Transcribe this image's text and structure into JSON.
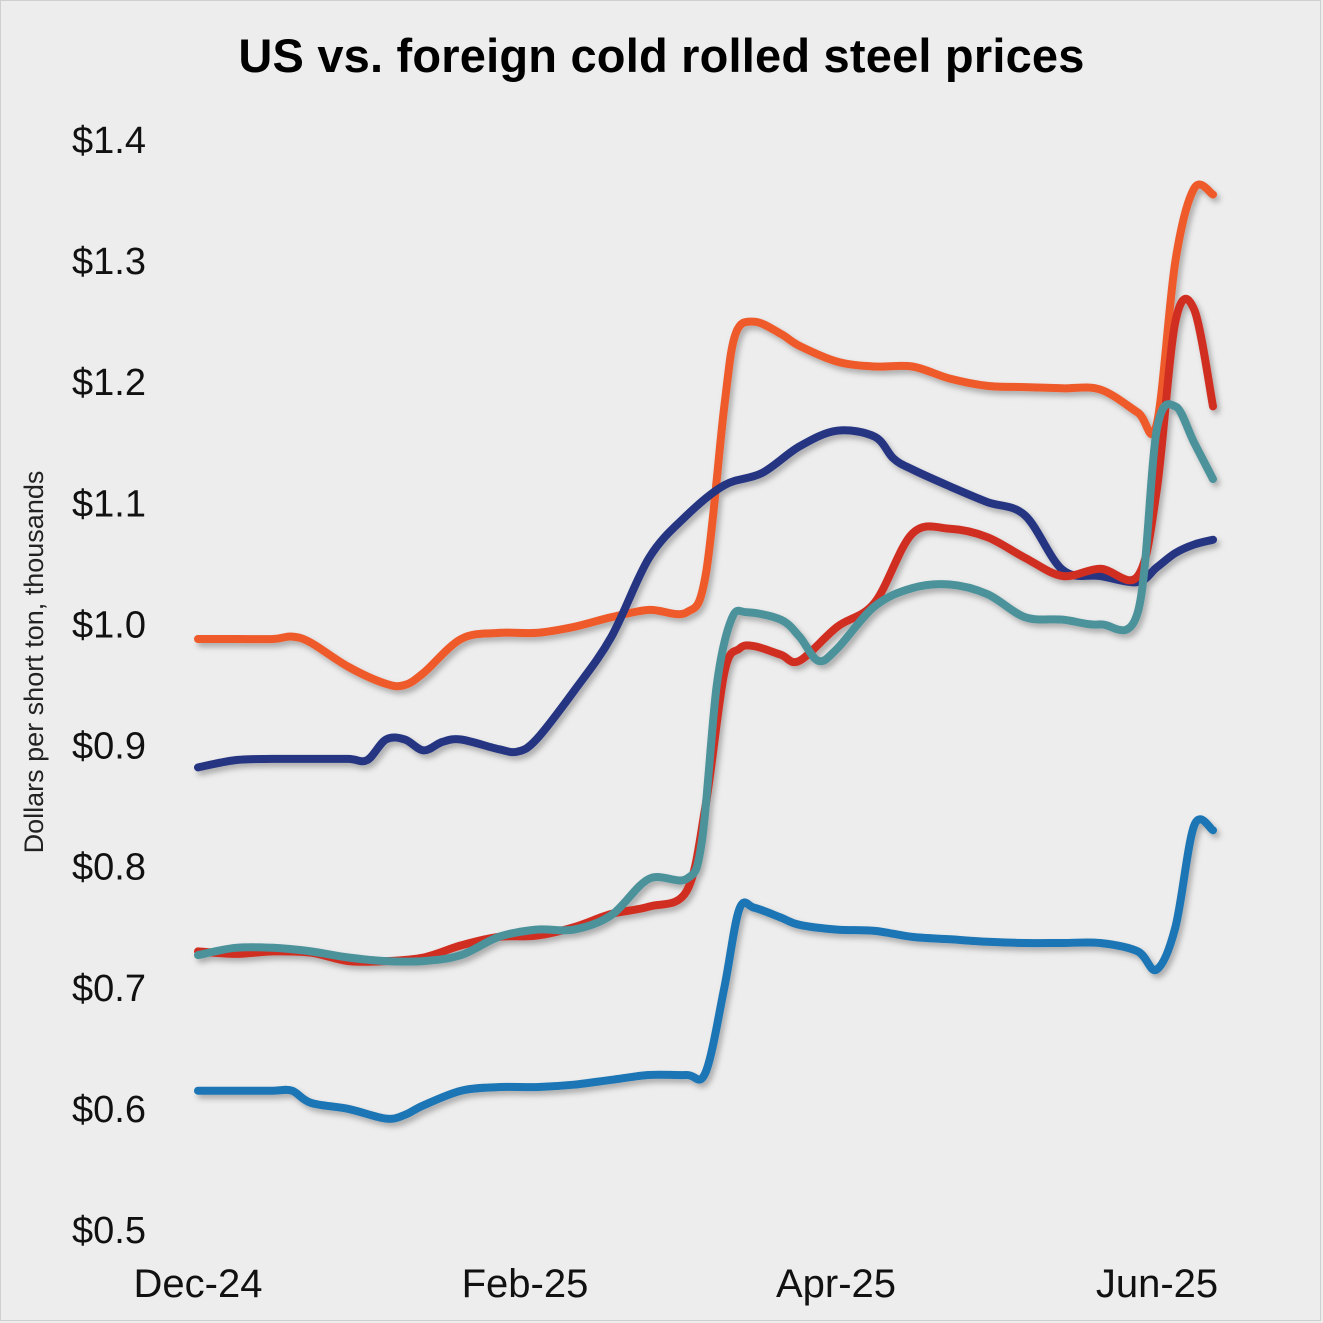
{
  "chart_data": {
    "type": "line",
    "title": "US vs. foreign cold rolled steel prices",
    "xlabel": "",
    "ylabel": "Dollars per short ton, thousands",
    "ylim": [
      0.5,
      1.4
    ],
    "yticks": [
      1.4,
      1.3,
      1.2,
      1.1,
      1.0,
      0.9,
      0.8,
      0.7,
      0.6,
      0.5
    ],
    "ytick_labels": [
      "$1.4",
      "$1.3",
      "$1.2",
      "$1.1",
      "$1.0",
      "$0.9",
      "$0.8",
      "$0.7",
      "$0.6",
      "$0.5"
    ],
    "x_range": [
      0,
      27
    ],
    "xticks": [
      0,
      9,
      18,
      27
    ],
    "xtick_labels": [
      "Dec-24",
      "Feb-25",
      "Apr-25",
      "Jun-25"
    ],
    "grid": false,
    "series": [
      {
        "name": "Orange",
        "color": "#ef5a2a",
        "x": [
          0,
          1,
          2,
          2.5,
          3,
          4,
          5,
          5.5,
          6,
          7,
          8,
          9,
          10,
          11,
          12,
          13,
          13.5,
          14,
          14.3,
          14.8,
          15.5,
          16,
          17,
          18,
          19,
          20,
          21,
          22,
          23,
          24,
          25,
          25.5,
          26,
          26.5,
          27
        ],
        "values": [
          0.988,
          0.988,
          0.988,
          0.99,
          0.985,
          0.965,
          0.951,
          0.95,
          0.96,
          0.988,
          0.993,
          0.993,
          0.998,
          1.006,
          1.012,
          1.01,
          1.04,
          1.18,
          1.24,
          1.25,
          1.24,
          1.23,
          1.217,
          1.213,
          1.213,
          1.203,
          1.197,
          1.196,
          1.195,
          1.194,
          1.175,
          1.165,
          1.3,
          1.36,
          1.355
        ]
      },
      {
        "name": "Navy",
        "color": "#253582",
        "x": [
          0,
          1,
          2,
          3,
          4,
          4.5,
          5,
          5.5,
          6,
          6.5,
          7,
          8,
          8.5,
          9,
          10,
          11,
          12,
          13,
          14,
          15,
          16,
          17,
          18,
          18.5,
          19,
          20,
          21,
          22,
          23,
          24,
          25,
          25.5,
          26,
          26.5,
          27
        ],
        "values": [
          0.882,
          0.888,
          0.889,
          0.889,
          0.889,
          0.888,
          0.905,
          0.905,
          0.896,
          0.903,
          0.905,
          0.897,
          0.895,
          0.905,
          0.945,
          0.99,
          1.055,
          1.09,
          1.115,
          1.125,
          1.147,
          1.16,
          1.155,
          1.137,
          1.128,
          1.114,
          1.101,
          1.09,
          1.045,
          1.04,
          1.035,
          1.047,
          1.059,
          1.066,
          1.07
        ]
      },
      {
        "name": "Red",
        "color": "#d12e22",
        "x": [
          0,
          1,
          2,
          3,
          4,
          5,
          6,
          7,
          8,
          9,
          10,
          11,
          12,
          13,
          13.5,
          14,
          14.4,
          14.8,
          15.5,
          16,
          17,
          18,
          19,
          20,
          21,
          22,
          23,
          24,
          25,
          25.5,
          26,
          26.5,
          27
        ],
        "values": [
          0.73,
          0.728,
          0.73,
          0.729,
          0.722,
          0.722,
          0.725,
          0.735,
          0.742,
          0.743,
          0.75,
          0.761,
          0.767,
          0.78,
          0.85,
          0.96,
          0.98,
          0.982,
          0.975,
          0.97,
          0.998,
          1.018,
          1.075,
          1.079,
          1.072,
          1.055,
          1.04,
          1.046,
          1.04,
          1.11,
          1.25,
          1.26,
          1.18
        ]
      },
      {
        "name": "Teal",
        "color": "#4c929b",
        "x": [
          0,
          1,
          2,
          3,
          4,
          5,
          6,
          7,
          8,
          9,
          10,
          11,
          12,
          13,
          13.4,
          13.8,
          14.2,
          14.6,
          15.5,
          16,
          16.5,
          17,
          18,
          19,
          20,
          21,
          22,
          23,
          24,
          25,
          25.5,
          26,
          26.5,
          27
        ],
        "values": [
          0.727,
          0.733,
          0.733,
          0.73,
          0.725,
          0.722,
          0.722,
          0.727,
          0.742,
          0.748,
          0.748,
          0.76,
          0.79,
          0.79,
          0.82,
          0.95,
          1.005,
          1.01,
          1.004,
          0.99,
          0.97,
          0.98,
          1.015,
          1.03,
          1.033,
          1.025,
          1.006,
          1.004,
          1.0,
          1.01,
          1.16,
          1.18,
          1.15,
          1.12
        ]
      },
      {
        "name": "Blue",
        "color": "#1b74b4",
        "x": [
          0,
          1,
          2,
          2.5,
          3,
          4,
          5,
          5.5,
          6,
          7,
          8,
          9,
          10,
          11,
          12,
          13,
          13.5,
          14,
          14.4,
          14.8,
          15.5,
          16,
          17,
          18,
          19,
          20,
          21,
          22,
          23,
          24,
          25,
          25.5,
          26,
          26.5,
          27
        ],
        "values": [
          0.615,
          0.615,
          0.615,
          0.615,
          0.605,
          0.6,
          0.592,
          0.595,
          0.603,
          0.615,
          0.618,
          0.618,
          0.62,
          0.624,
          0.628,
          0.628,
          0.63,
          0.7,
          0.765,
          0.766,
          0.758,
          0.752,
          0.748,
          0.747,
          0.742,
          0.74,
          0.738,
          0.737,
          0.737,
          0.737,
          0.73,
          0.715,
          0.75,
          0.834,
          0.83
        ]
      }
    ]
  }
}
